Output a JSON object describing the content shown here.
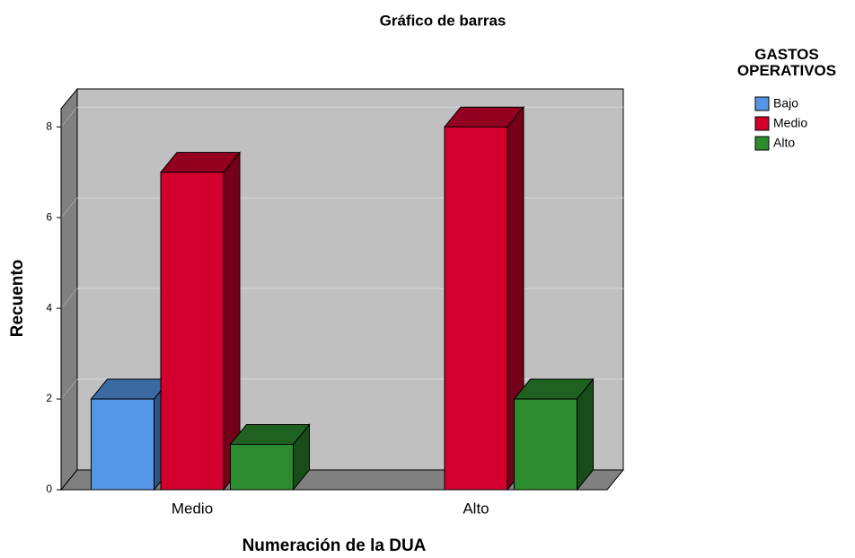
{
  "chart_data": {
    "type": "bar3d",
    "title": "Gráfico de barras",
    "x_label": "Numeración de la DUA",
    "y_label": "Recuento",
    "legend_title": "GASTOS OPERATIVOS",
    "categories": [
      "Medio",
      "Alto"
    ],
    "series": [
      {
        "name": "Bajo",
        "color": "#5596e6",
        "values": [
          2,
          null
        ]
      },
      {
        "name": "Medio",
        "color": "#d3002e",
        "values": [
          7,
          8
        ]
      },
      {
        "name": "Alto",
        "color": "#2b8b2e",
        "values": [
          1,
          2
        ]
      }
    ],
    "ylim": [
      0,
      8.4
    ],
    "yticks": [
      0,
      2,
      4,
      6,
      8
    ],
    "grid": true,
    "legend": "right"
  }
}
